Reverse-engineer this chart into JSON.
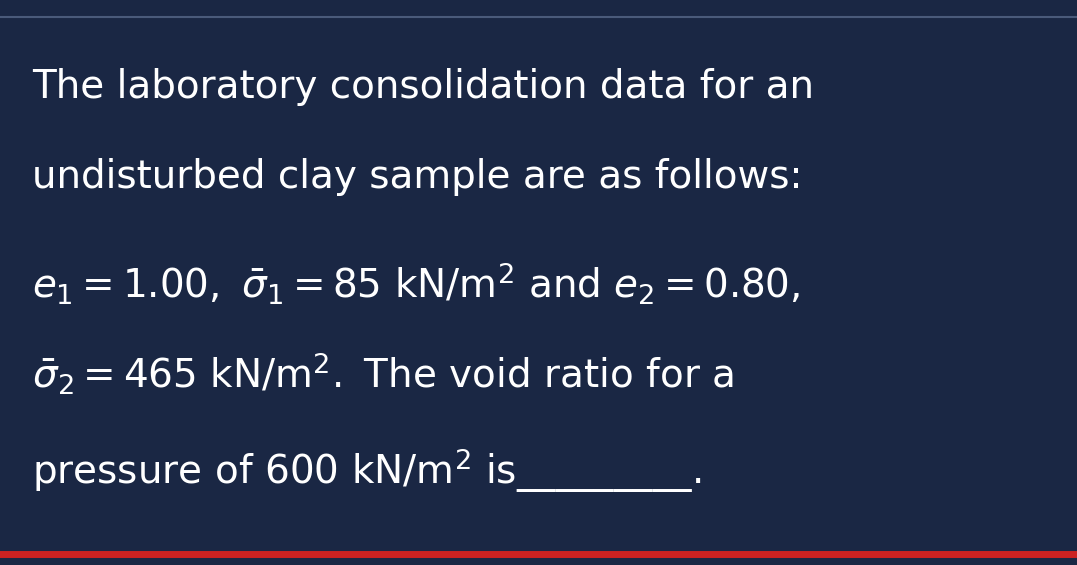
{
  "background_color": "#1a2744",
  "text_color": "#ffffff",
  "top_border_color": "#4a5a7a",
  "bottom_border_color": "#cc2222",
  "fig_width": 10.77,
  "fig_height": 5.65,
  "line1": "The laboratory consolidation data for an",
  "line2": "undisturbed clay sample are as follows:",
  "font_size_main": 28,
  "font_size_eq": 26
}
